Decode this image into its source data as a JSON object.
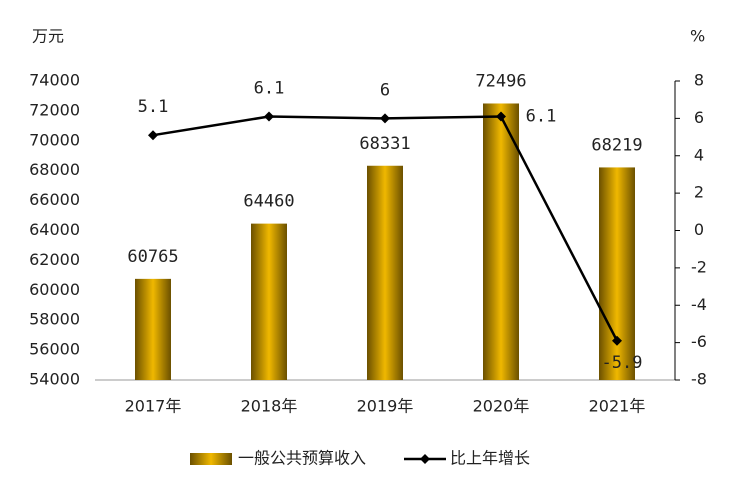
{
  "chart_data": {
    "type": "bar-line",
    "y_label": "万元",
    "y2_label": "%",
    "categories": [
      "2017年",
      "2018年",
      "2019年",
      "2020年",
      "2021年"
    ],
    "series": [
      {
        "name": "一般公共预算收入",
        "type": "bar",
        "color": "#f0b800",
        "values": [
          60765,
          64460,
          68331,
          72496,
          68219
        ]
      },
      {
        "name": "比上年增长",
        "type": "line",
        "axis": "y2",
        "color": "#000000",
        "values": [
          5.1,
          6.1,
          6.0,
          6.1,
          -5.9
        ]
      }
    ],
    "ylim": [
      54000,
      74000
    ],
    "yticks": [
      54000,
      56000,
      58000,
      60000,
      62000,
      64000,
      66000,
      68000,
      70000,
      72000,
      74000
    ],
    "y2lim": [
      -8,
      8
    ],
    "y2ticks": [
      -8,
      -6,
      -4,
      -2,
      0,
      2,
      4,
      6,
      8
    ],
    "legend": "bottom"
  }
}
